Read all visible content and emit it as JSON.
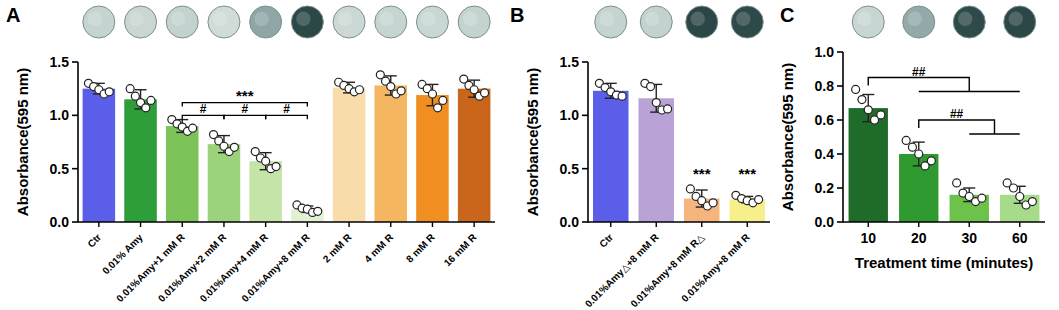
{
  "chart_data": [
    {
      "type": "bar",
      "panel": "A",
      "categories": [
        "Ctr",
        "0.01% Amy",
        "0.01%Amy+1 mM R",
        "0.01%Amy+2 mM R",
        "0.01%Amy+4 mM R",
        "0.01%Amy+8 mM R",
        "2 mM R",
        "4 mM R",
        "8 mM R",
        "16 mM R"
      ],
      "values": [
        1.25,
        1.15,
        0.9,
        0.73,
        0.57,
        0.12,
        1.26,
        1.28,
        1.19,
        1.25
      ],
      "errors": [
        0.05,
        0.09,
        0.06,
        0.08,
        0.08,
        0.03,
        0.05,
        0.09,
        0.1,
        0.08
      ],
      "points": [
        [
          1.3,
          1.27,
          1.24,
          1.2,
          1.22
        ],
        [
          1.25,
          1.18,
          1.12,
          1.07,
          1.14
        ],
        [
          0.96,
          0.92,
          0.89,
          0.85,
          0.88
        ],
        [
          0.82,
          0.76,
          0.71,
          0.66,
          0.7
        ],
        [
          0.66,
          0.6,
          0.57,
          0.5,
          0.52
        ],
        [
          0.16,
          0.13,
          0.12,
          0.09,
          0.1
        ],
        [
          1.31,
          1.28,
          1.25,
          1.22,
          1.24
        ],
        [
          1.38,
          1.32,
          1.27,
          1.2,
          1.23
        ],
        [
          1.29,
          1.25,
          1.2,
          1.07,
          1.14
        ],
        [
          1.34,
          1.28,
          1.24,
          1.18,
          1.21
        ]
      ],
      "colors": [
        "#5b5ee8",
        "#2e9e3a",
        "#7cc35a",
        "#9dd27c",
        "#c4e4a8",
        "#e2f1d4",
        "#f8dcaa",
        "#f5b662",
        "#f08e22",
        "#c9661c"
      ],
      "ylim": [
        0,
        1.5
      ],
      "yticks": [
        {
          "value": 0,
          "label": "0.0"
        },
        {
          "value": 0.5,
          "label": "0.5"
        },
        {
          "value": 1,
          "label": "1.0"
        },
        {
          "value": 1.5,
          "label": "1.5"
        }
      ],
      "y_label": "Absorbance(595 nm)",
      "annotations": [
        {
          "text": "***",
          "start": 2,
          "end": 5,
          "y": 1.12
        },
        {
          "text": "#",
          "start": 2,
          "end": 3,
          "y": 1.0
        },
        {
          "text": "#",
          "start": 3,
          "end": 4,
          "y": 1.0
        },
        {
          "text": "#",
          "start": 4,
          "end": 5,
          "y": 1.0
        }
      ]
    },
    {
      "type": "bar",
      "panel": "B",
      "categories": [
        "Ctr",
        "0.01%Amy△+8 mM R",
        "0.01%Amy+8 mM R△",
        "0.01%Amy+8 mM R"
      ],
      "values": [
        1.23,
        1.16,
        0.22,
        0.21
      ],
      "errors": [
        0.07,
        0.13,
        0.08,
        0.03
      ],
      "points": [
        [
          1.3,
          1.26,
          1.22,
          1.19,
          1.18
        ],
        [
          1.3,
          1.27,
          1.12,
          1.05,
          1.06
        ],
        [
          0.31,
          0.24,
          0.2,
          0.15,
          0.18
        ],
        [
          0.25,
          0.22,
          0.2,
          0.18,
          0.21
        ]
      ],
      "colors": [
        "#5b5ee8",
        "#b9a3d6",
        "#f5b67e",
        "#f7f08a"
      ],
      "ylim": [
        0,
        1.5
      ],
      "yticks": [
        {
          "value": 0,
          "label": "0.0"
        },
        {
          "value": 0.5,
          "label": "0.5"
        },
        {
          "value": 1,
          "label": "1.0"
        },
        {
          "value": 1.5,
          "label": "1.5"
        }
      ],
      "y_label": "Absorbance(595 nm)",
      "annotations": [
        {
          "text": "***",
          "start": 2,
          "end": 2,
          "y": 0.38
        },
        {
          "text": "***",
          "start": 3,
          "end": 3,
          "y": 0.38
        }
      ]
    },
    {
      "type": "bar",
      "panel": "C",
      "categories": [
        "10",
        "20",
        "30",
        "60"
      ],
      "values": [
        0.67,
        0.4,
        0.16,
        0.16
      ],
      "errors": [
        0.08,
        0.07,
        0.04,
        0.05
      ],
      "points": [
        [
          0.78,
          0.72,
          0.66,
          0.6,
          0.63
        ],
        [
          0.48,
          0.44,
          0.4,
          0.33,
          0.36
        ],
        [
          0.23,
          0.17,
          0.15,
          0.12,
          0.14
        ],
        [
          0.23,
          0.2,
          0.15,
          0.1,
          0.12
        ]
      ],
      "colors": [
        "#1f6b2a",
        "#2f9a2f",
        "#6cc24a",
        "#a6db8a"
      ],
      "ylim": [
        0,
        1.0
      ],
      "yticks": [
        {
          "value": 0,
          "label": "0.0"
        },
        {
          "value": 0.2,
          "label": "0.2"
        },
        {
          "value": 0.4,
          "label": "0.4"
        },
        {
          "value": 0.6,
          "label": "0.6"
        },
        {
          "value": 0.8,
          "label": "0.8"
        },
        {
          "value": 1,
          "label": "1.0"
        }
      ],
      "y_label": "Absorbance(595 nm)",
      "x_label": "Treatment time (minutes)",
      "annotations": [
        {
          "text": "##",
          "start": 0,
          "end": [
            1,
            3
          ],
          "y": 0.85
        },
        {
          "text": "##",
          "start": 1,
          "end": [
            2,
            3
          ],
          "y": 0.6
        }
      ]
    }
  ]
}
